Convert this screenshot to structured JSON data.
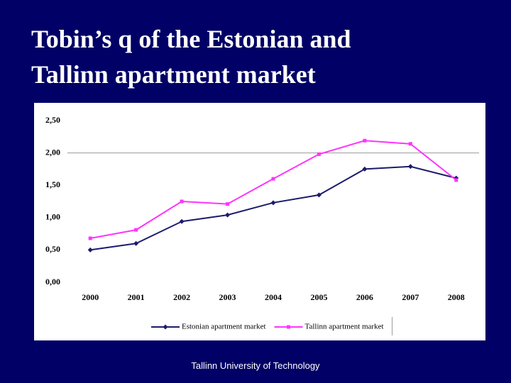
{
  "chart_data": {
    "type": "line",
    "title": "Tobin’s q of the Estonian and Tallinn apartment market",
    "categories": [
      "2000",
      "2001",
      "2002",
      "2003",
      "2004",
      "2005",
      "2006",
      "2007",
      "2008"
    ],
    "series": [
      {
        "name": "Estonian apartment market",
        "color": "#1c1c6c",
        "marker": "diamond",
        "values": [
          0.5,
          0.6,
          0.94,
          1.04,
          1.23,
          1.35,
          1.75,
          1.79,
          1.61
        ]
      },
      {
        "name": "Tallinn apartment market",
        "color": "#ff33ff",
        "marker": "square",
        "values": [
          0.68,
          0.81,
          1.25,
          1.21,
          1.6,
          1.98,
          2.19,
          2.14,
          1.58
        ]
      }
    ],
    "ylim": [
      0,
      2.5
    ],
    "yticks": [
      {
        "value": 0,
        "label": "0,00"
      },
      {
        "value": 0.5,
        "label": "0,50"
      },
      {
        "value": 1,
        "label": "1,00"
      },
      {
        "value": 1.5,
        "label": "1,50"
      },
      {
        "value": 2,
        "label": "2,00"
      },
      {
        "value": 2.5,
        "label": "2,50"
      }
    ],
    "grid_values": [
      2
    ],
    "legend": "bottom"
  },
  "footer": "Tallinn University of Technology"
}
